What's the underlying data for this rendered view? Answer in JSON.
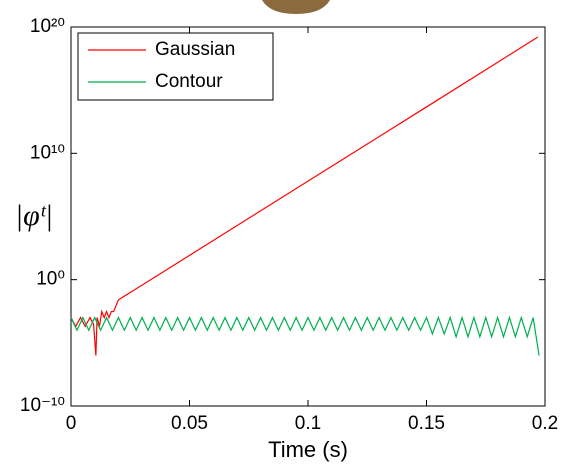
{
  "chart_data": {
    "type": "line",
    "xlabel": "Time (s)",
    "ylabel": "|φᵗ|",
    "xlim": [
      0,
      0.2
    ],
    "xticks": [
      0,
      0.05,
      0.1,
      0.15,
      0.2
    ],
    "ylim": [
      1e-10,
      1e+20
    ],
    "log_y": true,
    "yticks": [
      {
        "value": 1e-10,
        "label": "10⁻¹⁰"
      },
      {
        "value": 1,
        "label": "10⁰"
      },
      {
        "value": 10000000000.0,
        "label": "10¹⁰"
      },
      {
        "value": 1e+20,
        "label": "10²⁰"
      }
    ],
    "legend": "upper left",
    "series": [
      {
        "name": "Gaussian",
        "color": "#ff0000",
        "x": [
          0,
          0.002,
          0.004,
          0.006,
          0.008,
          0.0095,
          0.0105,
          0.011,
          0.012,
          0.013,
          0.014,
          0.015,
          0.016,
          0.017,
          0.018,
          0.02,
          0.05,
          0.1,
          0.15,
          0.197
        ],
        "values": [
          0.001,
          0.0002,
          0.001,
          0.0002,
          0.001,
          0.0003,
          1e-06,
          0.001,
          0.0002,
          0.003,
          0.001,
          0.003,
          0.001,
          0.003,
          0.003,
          0.025,
          84,
          63000000,
          47000000000000,
          16000000000000000000
        ]
      },
      {
        "name": "Contour",
        "color": "#00b050",
        "x": [
          0,
          0.0025,
          0.005,
          0.0075,
          0.01,
          0.0125,
          0.015,
          0.0175,
          0.02,
          0.0225,
          0.025,
          0.0275,
          0.03,
          0.0325,
          0.035,
          0.0375,
          0.04,
          0.0425,
          0.045,
          0.0475,
          0.05,
          0.0525,
          0.055,
          0.0575,
          0.06,
          0.0625,
          0.065,
          0.0675,
          0.07,
          0.0725,
          0.075,
          0.0775,
          0.08,
          0.0825,
          0.085,
          0.0875,
          0.09,
          0.0925,
          0.095,
          0.0975,
          0.1,
          0.1025,
          0.105,
          0.1075,
          0.11,
          0.1125,
          0.115,
          0.1175,
          0.12,
          0.1225,
          0.125,
          0.1275,
          0.13,
          0.1325,
          0.135,
          0.1375,
          0.14,
          0.1425,
          0.145,
          0.1475,
          0.15,
          0.1525,
          0.155,
          0.1575,
          0.16,
          0.1625,
          0.165,
          0.1675,
          0.17,
          0.1725,
          0.175,
          0.1775,
          0.18,
          0.1825,
          0.185,
          0.1875,
          0.19,
          0.1925,
          0.195,
          0.1975
        ],
        "values": [
          0.001,
          0.0001,
          0.001,
          0.0001,
          0.001,
          0.0001,
          0.001,
          0.0001,
          0.001,
          0.0001,
          0.001,
          0.0001,
          0.001,
          0.0001,
          0.001,
          0.0001,
          0.001,
          0.0001,
          0.001,
          0.0001,
          0.001,
          0.0001,
          0.001,
          0.0001,
          0.001,
          0.0001,
          0.001,
          0.0001,
          0.001,
          0.0001,
          0.001,
          0.0001,
          0.001,
          0.0001,
          0.001,
          0.0001,
          0.001,
          0.0001,
          0.001,
          0.0001,
          0.001,
          0.0001,
          0.001,
          0.0001,
          0.001,
          0.0001,
          0.001,
          0.0001,
          0.001,
          0.0001,
          0.001,
          0.0001,
          0.001,
          0.0001,
          0.001,
          0.0001,
          0.001,
          0.0001,
          0.001,
          0.0001,
          0.001,
          5e-05,
          0.001,
          5e-05,
          0.001,
          3e-05,
          0.001,
          3e-05,
          0.001,
          3e-05,
          0.001,
          3e-05,
          0.001,
          3e-05,
          0.001,
          3e-05,
          0.001,
          3e-05,
          0.001,
          1e-06
        ]
      }
    ]
  }
}
